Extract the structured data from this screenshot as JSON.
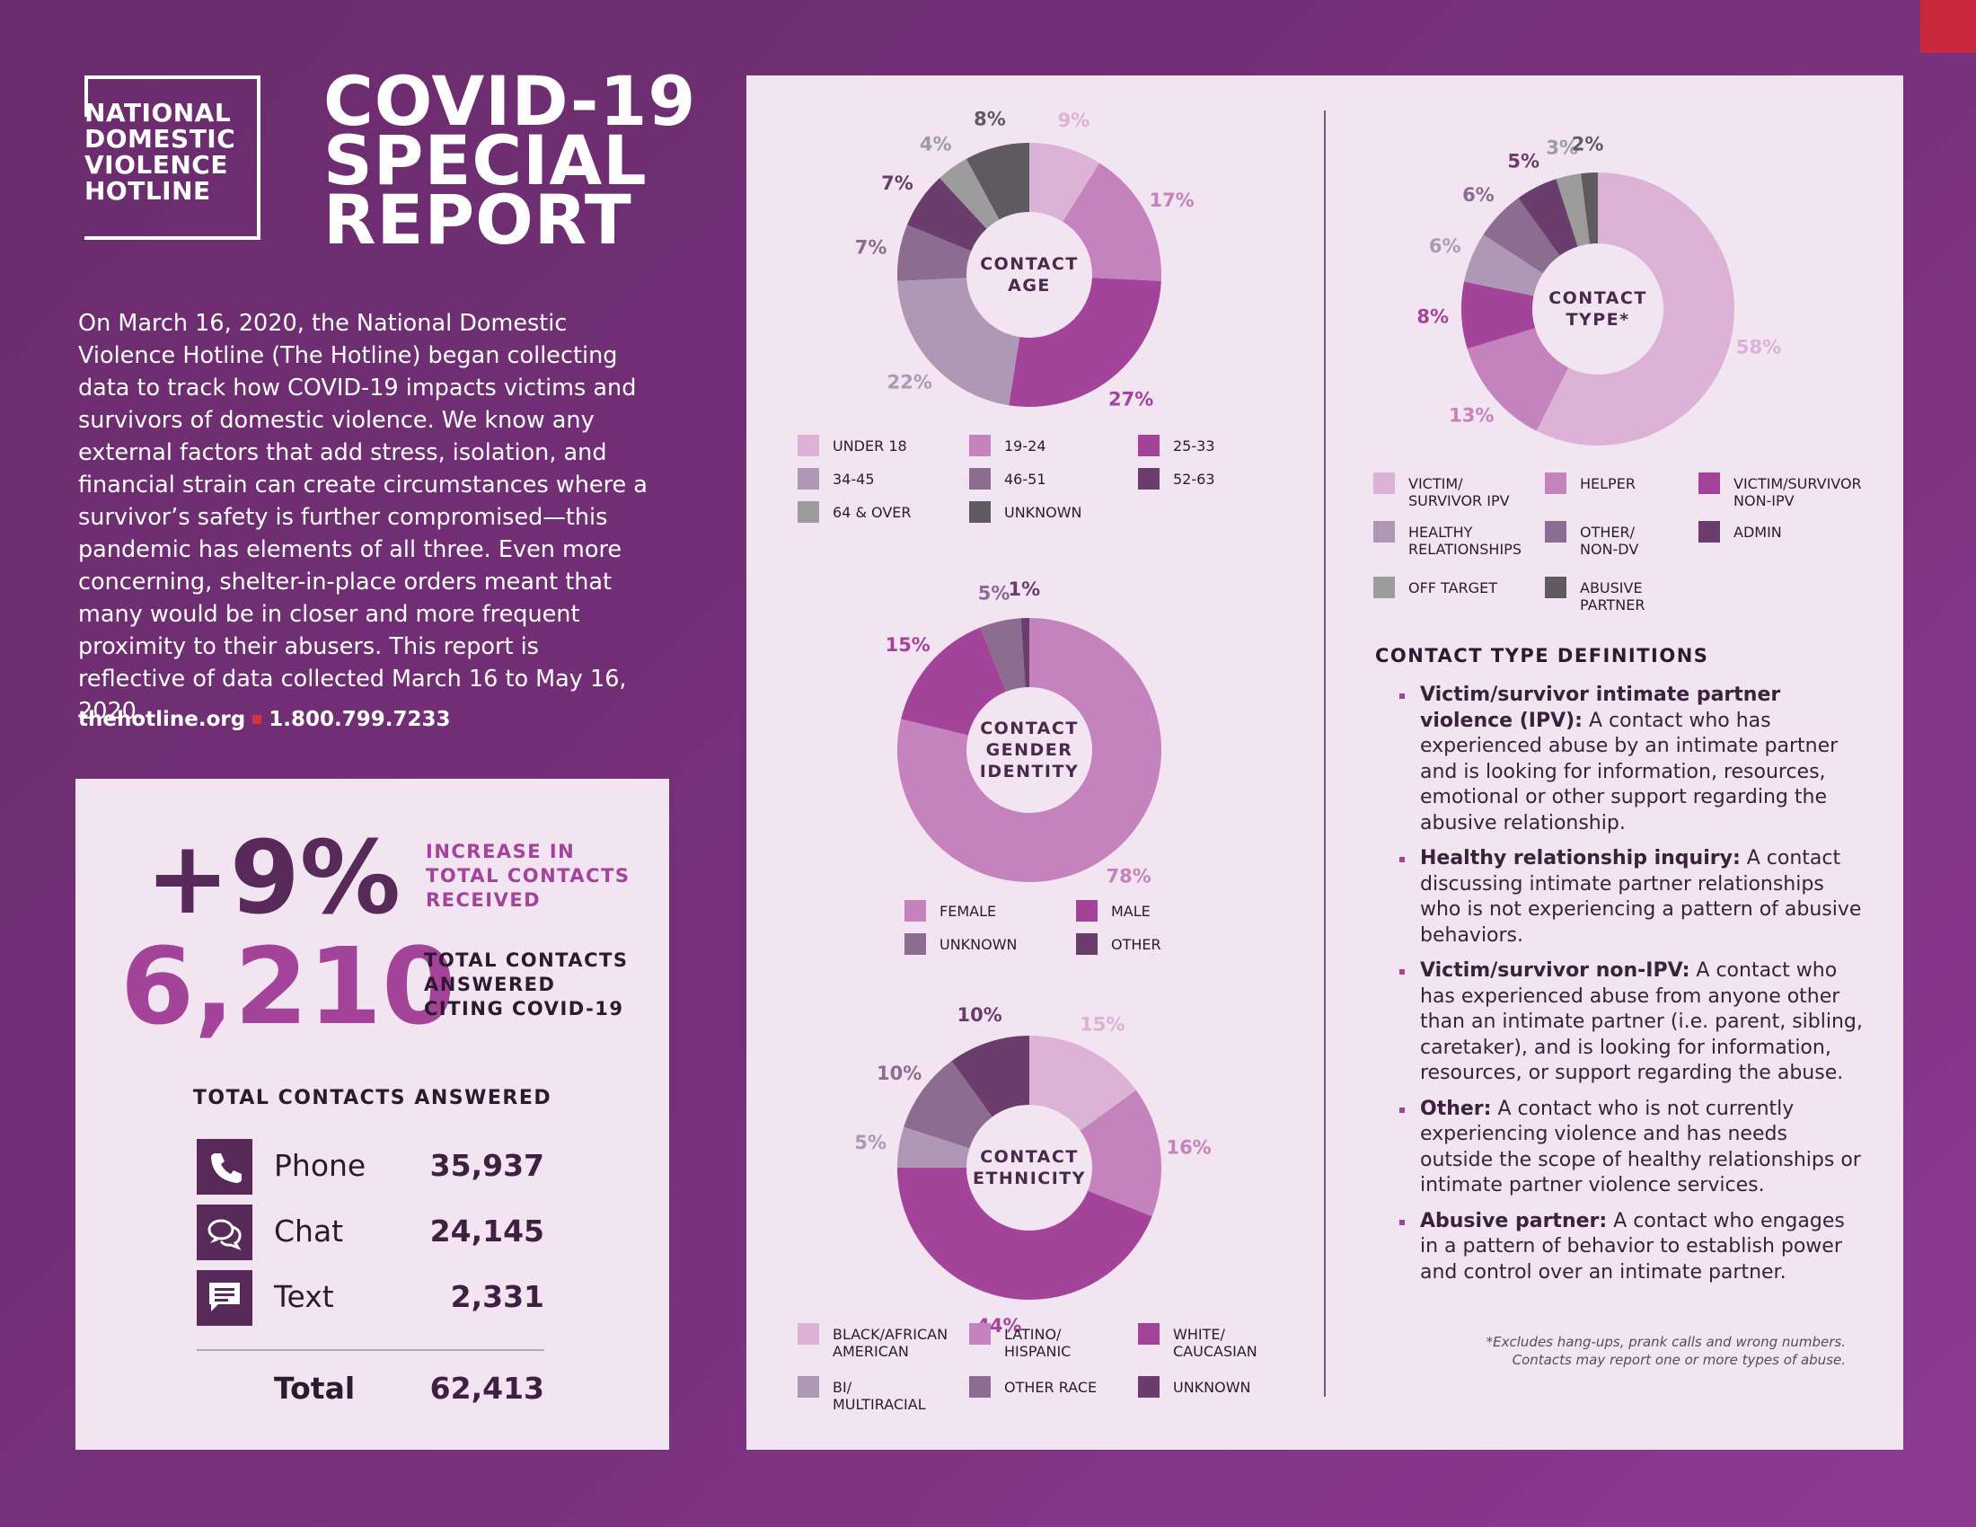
{
  "logo": [
    "NATIONAL",
    "DOMESTIC",
    "VIOLENCE",
    "HOTLINE"
  ],
  "title": [
    "COVID-19",
    "SPECIAL",
    "REPORT"
  ],
  "intro": "On March 16, 2020, the National Domestic Violence Hotline (The Hotline) began collecting data to track how COVID-19 impacts victims and survivors of domestic violence. We know any external factors that add stress, isolation, and financial strain can create circumstances where a survivor’s safety is further compromised—this pandemic has elements of all three. Even more concerning, shelter-in-place orders meant that many would be in closer and more frequent proximity to their abusers. This report is reflective of data collected March 16 to May 16, 2020.",
  "website": "thehotline.org",
  "phone": "1.800.799.7233",
  "stats": {
    "increase": "+9%",
    "increase_label": [
      "INCREASE IN",
      "TOTAL CONTACTS",
      "RECEIVED"
    ],
    "covid_total": "6,210",
    "covid_label": [
      "TOTAL CONTACTS",
      "ANSWERED",
      "CITING COVID-19"
    ],
    "table_title": "TOTAL CONTACTS ANSWERED",
    "rows": [
      [
        "Phone",
        "35,937"
      ],
      [
        "Chat",
        "24,145"
      ],
      [
        "Text",
        "2,331"
      ]
    ],
    "total": [
      "Total",
      "62,413"
    ]
  },
  "chart_data": [
    {
      "type": "donut",
      "title": "CONTACT AGE",
      "categories": [
        "UNDER 18",
        "19-24",
        "25-33",
        "34-45",
        "46-51",
        "52-63",
        "64 & OVER",
        "UNKNOWN"
      ],
      "values": [
        9,
        17,
        27,
        22,
        7,
        7,
        4,
        8
      ],
      "value_labels": [
        "9%",
        "17%",
        "27%",
        "22%",
        "7%",
        "7%",
        "4%",
        "8%"
      ],
      "colors": [
        "#dcb2d6",
        "#c583bd",
        "#a3449a",
        "#ae98b5",
        "#8c6c91",
        "#6a3d6d",
        "#9c9c9c",
        "#5f5a5f"
      ]
    },
    {
      "type": "donut",
      "title": "CONTACT TYPE*",
      "categories": [
        "VICTIM/\nSURVIVOR IPV",
        "HELPER",
        "VICTIM/SURVIVOR\nNON-IPV",
        "HEALTHY\nRELATIONSHIPS",
        "OTHER/\nNON-DV",
        "ADMIN",
        "OFF TARGET",
        "ABUSIVE\nPARTNER"
      ],
      "values": [
        58,
        13,
        8,
        6,
        6,
        5,
        3,
        2
      ],
      "value_labels": [
        "58%",
        "13%",
        "8%",
        "6%",
        "6%",
        "5%",
        "3%",
        "2%"
      ],
      "colors": [
        "#dcb2d6",
        "#c583bd",
        "#a3449a",
        "#ae98b5",
        "#8c6c91",
        "#6a3d6d",
        "#9c9c9c",
        "#5f5a5f"
      ]
    },
    {
      "type": "donut",
      "title": "CONTACT GENDER IDENTITY",
      "categories": [
        "FEMALE",
        "MALE",
        "UNKNOWN",
        "OTHER"
      ],
      "values": [
        78,
        15,
        5,
        1
      ],
      "value_labels": [
        "78%",
        "15%",
        "5%",
        "1%"
      ],
      "colors": [
        "#c583bd",
        "#a3449a",
        "#8c6c91",
        "#6a3d6d"
      ]
    },
    {
      "type": "donut",
      "title": "CONTACT ETHNICITY",
      "categories": [
        "BLACK/AFRICAN\nAMERICAN",
        "LATINO/\nHISPANIC",
        "WHITE/\nCAUCASIAN",
        "BI/\nMULTIRACIAL",
        "OTHER RACE",
        "UNKNOWN"
      ],
      "values": [
        15,
        16,
        44,
        5,
        10,
        10
      ],
      "value_labels": [
        "15%",
        "16%",
        "44%",
        "5%",
        "10%",
        "10%"
      ],
      "colors": [
        "#dcb2d6",
        "#c583bd",
        "#a3449a",
        "#ae98b5",
        "#8c6c91",
        "#6a3d6d"
      ]
    }
  ],
  "definitions": {
    "title": "CONTACT TYPE DEFINITIONS",
    "items": [
      {
        "term": "Victim/survivor intimate partner violence (IPV):",
        "text": "A contact who has experienced abuse by an intimate partner and is looking for information, resources, emotional or other support regarding the abusive relationship."
      },
      {
        "term": "Healthy relationship inquiry:",
        "text": "A contact discussing intimate partner relationships who is not experiencing a pattern of abusive behaviors."
      },
      {
        "term": "Victim/survivor non-IPV:",
        "text": "A contact who has experienced abuse from anyone other than an intimate partner (i.e. parent, sibling, caretaker), and is looking for information, resources, or support regarding the abuse."
      },
      {
        "term": "Other:",
        "text": "A contact who is not currently experiencing violence and has needs outside the scope of healthy relationships or intimate partner violence services."
      },
      {
        "term": "Abusive partner:",
        "text": "A contact who engages in a pattern of behavior to establish power and control over an intimate partner."
      }
    ]
  },
  "footnote": [
    "*Excludes hang-ups, prank calls and wrong numbers.",
    "Contacts may report one or more types of abuse."
  ]
}
